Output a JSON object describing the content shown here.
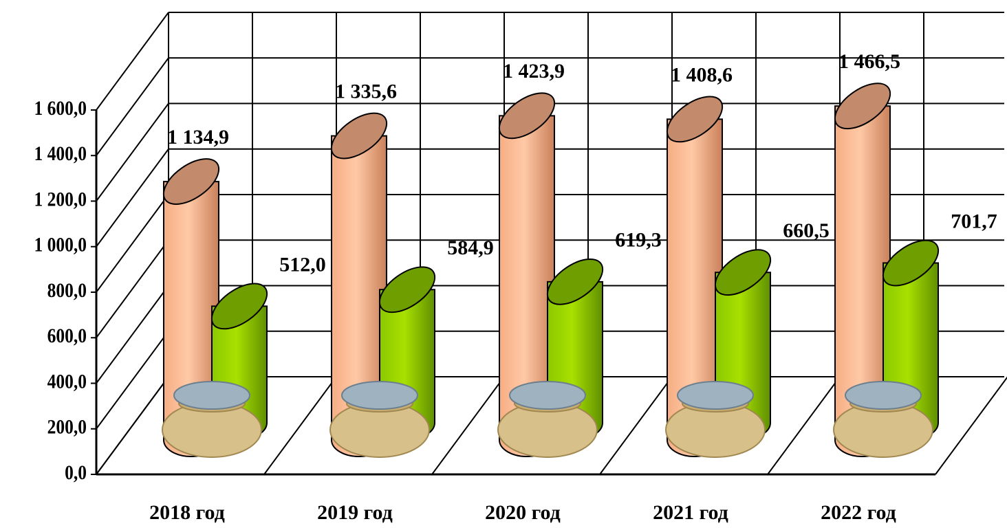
{
  "chart_data": {
    "type": "bar3d",
    "categories": [
      "2018 год",
      "2019 год",
      "2020 год",
      "2021 год",
      "2022 год"
    ],
    "series": [
      {
        "color": "#f6ad84",
        "values": [
          1134.9,
          1335.6,
          1423.9,
          1408.6,
          1466.5
        ],
        "value_labels": [
          "1 134,9",
          "1 335,6",
          "1 423,9",
          "1 408,6",
          "1 466,5"
        ]
      },
      {
        "color": "#8cc800",
        "values": [
          512.0,
          584.9,
          619.3,
          660.5,
          701.7
        ],
        "value_labels": [
          "512,0",
          "584,9",
          "619,3",
          "660,5",
          "701,7"
        ]
      }
    ],
    "ylim": [
      0,
      1600
    ],
    "yticks": [
      {
        "value": 0,
        "label": "0,0"
      },
      {
        "value": 200,
        "label": "200,0"
      },
      {
        "value": 400,
        "label": "400,0"
      },
      {
        "value": 600,
        "label": "600,0"
      },
      {
        "value": 800,
        "label": "800,0"
      },
      {
        "value": 1000,
        "label": "1 000,0"
      },
      {
        "value": 1200,
        "label": "1 200,0"
      },
      {
        "value": 1400,
        "label": "1 400,0"
      },
      {
        "value": 1600,
        "label": "1 600,0"
      }
    ],
    "grid": true
  }
}
